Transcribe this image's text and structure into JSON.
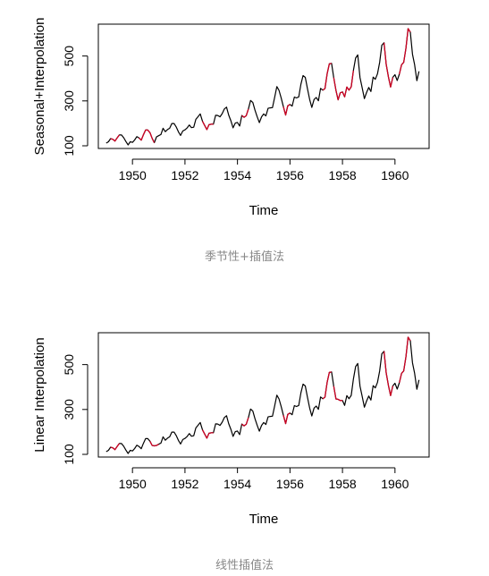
{
  "captions": [
    "季节性+插值法",
    "线性插值法"
  ],
  "chart_data": [
    {
      "type": "line",
      "xlabel": "Time",
      "ylabel": "Seasonal+Interpolation",
      "xlim": [
        1948.7,
        1961.3
      ],
      "ylim": [
        88,
        642
      ],
      "xticks": [
        1950,
        1952,
        1954,
        1956,
        1958,
        1960
      ],
      "yticks": [
        100,
        300,
        500
      ],
      "x_start": 1949,
      "x_step": 0.0833333,
      "grid": false,
      "legend": "none",
      "colors": {
        "observed": "#000000",
        "imputed": "#cc0022"
      },
      "series": [
        {
          "values": [
            112,
            118,
            132,
            129,
            121,
            135,
            148,
            148,
            136,
            119,
            104,
            118,
            115,
            126,
            141,
            135,
            125,
            149,
            170,
            170,
            158,
            133,
            114,
            140,
            145,
            150,
            178,
            163,
            172,
            178,
            199,
            199,
            184,
            162,
            146,
            166,
            171,
            180,
            193,
            181,
            183,
            218,
            230,
            242,
            209,
            191,
            172,
            194,
            196,
            196,
            236,
            235,
            229,
            243,
            264,
            272,
            237,
            211,
            180,
            201,
            204,
            188,
            235,
            227,
            234,
            264,
            302,
            293,
            259,
            229,
            203,
            229,
            242,
            233,
            267,
            269,
            270,
            315,
            364,
            347,
            312,
            274,
            237,
            278,
            284,
            277,
            317,
            313,
            318,
            374,
            413,
            405,
            355,
            306,
            271,
            306,
            315,
            301,
            356,
            348,
            355,
            422,
            465,
            467,
            404,
            347,
            305,
            336,
            340,
            318,
            362,
            348,
            363,
            435,
            491,
            505,
            404,
            359,
            310,
            337,
            360,
            342,
            406,
            396,
            420,
            472,
            548,
            559,
            463,
            407,
            362,
            405,
            417,
            391,
            419,
            461,
            472,
            535,
            622,
            606,
            508,
            461,
            390,
            432
          ]
        }
      ],
      "imputed_segments": [
        [
          2,
          6
        ],
        [
          15,
          22
        ],
        [
          44,
          49
        ],
        [
          62,
          65
        ],
        [
          81,
          84
        ],
        [
          99,
          103
        ],
        [
          104,
          108
        ],
        [
          108,
          113
        ],
        [
          127,
          131
        ],
        [
          134,
          139
        ]
      ]
    },
    {
      "type": "line",
      "xlabel": "Time",
      "ylabel": "Linear Interpolation",
      "xlim": [
        1948.7,
        1961.3
      ],
      "ylim": [
        88,
        642
      ],
      "xticks": [
        1950,
        1952,
        1954,
        1956,
        1958,
        1960
      ],
      "yticks": [
        100,
        300,
        500
      ],
      "x_start": 1949,
      "x_step": 0.0833333,
      "grid": false,
      "legend": "none",
      "colors": {
        "observed": "#000000",
        "imputed": "#cc0022"
      },
      "series": [
        {
          "values": [
            112,
            118,
            132,
            129,
            121,
            135,
            148,
            148,
            136,
            119,
            104,
            118,
            115,
            126,
            141,
            135,
            125,
            149,
            170,
            170,
            158,
            140,
            138,
            140,
            145,
            150,
            178,
            163,
            172,
            178,
            199,
            199,
            184,
            162,
            146,
            166,
            171,
            180,
            193,
            181,
            183,
            218,
            230,
            242,
            209,
            191,
            172,
            194,
            196,
            196,
            236,
            235,
            229,
            243,
            264,
            272,
            237,
            211,
            180,
            201,
            204,
            188,
            235,
            227,
            234,
            264,
            302,
            293,
            259,
            229,
            203,
            229,
            242,
            233,
            267,
            269,
            270,
            315,
            364,
            347,
            312,
            274,
            237,
            278,
            284,
            277,
            317,
            313,
            318,
            374,
            413,
            405,
            355,
            306,
            271,
            306,
            315,
            301,
            356,
            348,
            355,
            422,
            465,
            467,
            404,
            347,
            345,
            340,
            340,
            318,
            362,
            348,
            363,
            435,
            491,
            505,
            404,
            359,
            310,
            337,
            360,
            342,
            406,
            396,
            420,
            472,
            548,
            559,
            463,
            407,
            362,
            405,
            417,
            391,
            419,
            461,
            472,
            535,
            622,
            606,
            508,
            461,
            390,
            432
          ]
        }
      ],
      "imputed_segments": [
        [
          2,
          6
        ],
        [
          20,
          24
        ],
        [
          44,
          49
        ],
        [
          62,
          65
        ],
        [
          81,
          84
        ],
        [
          99,
          103
        ],
        [
          104,
          108
        ],
        [
          127,
          131
        ],
        [
          134,
          139
        ]
      ]
    }
  ]
}
